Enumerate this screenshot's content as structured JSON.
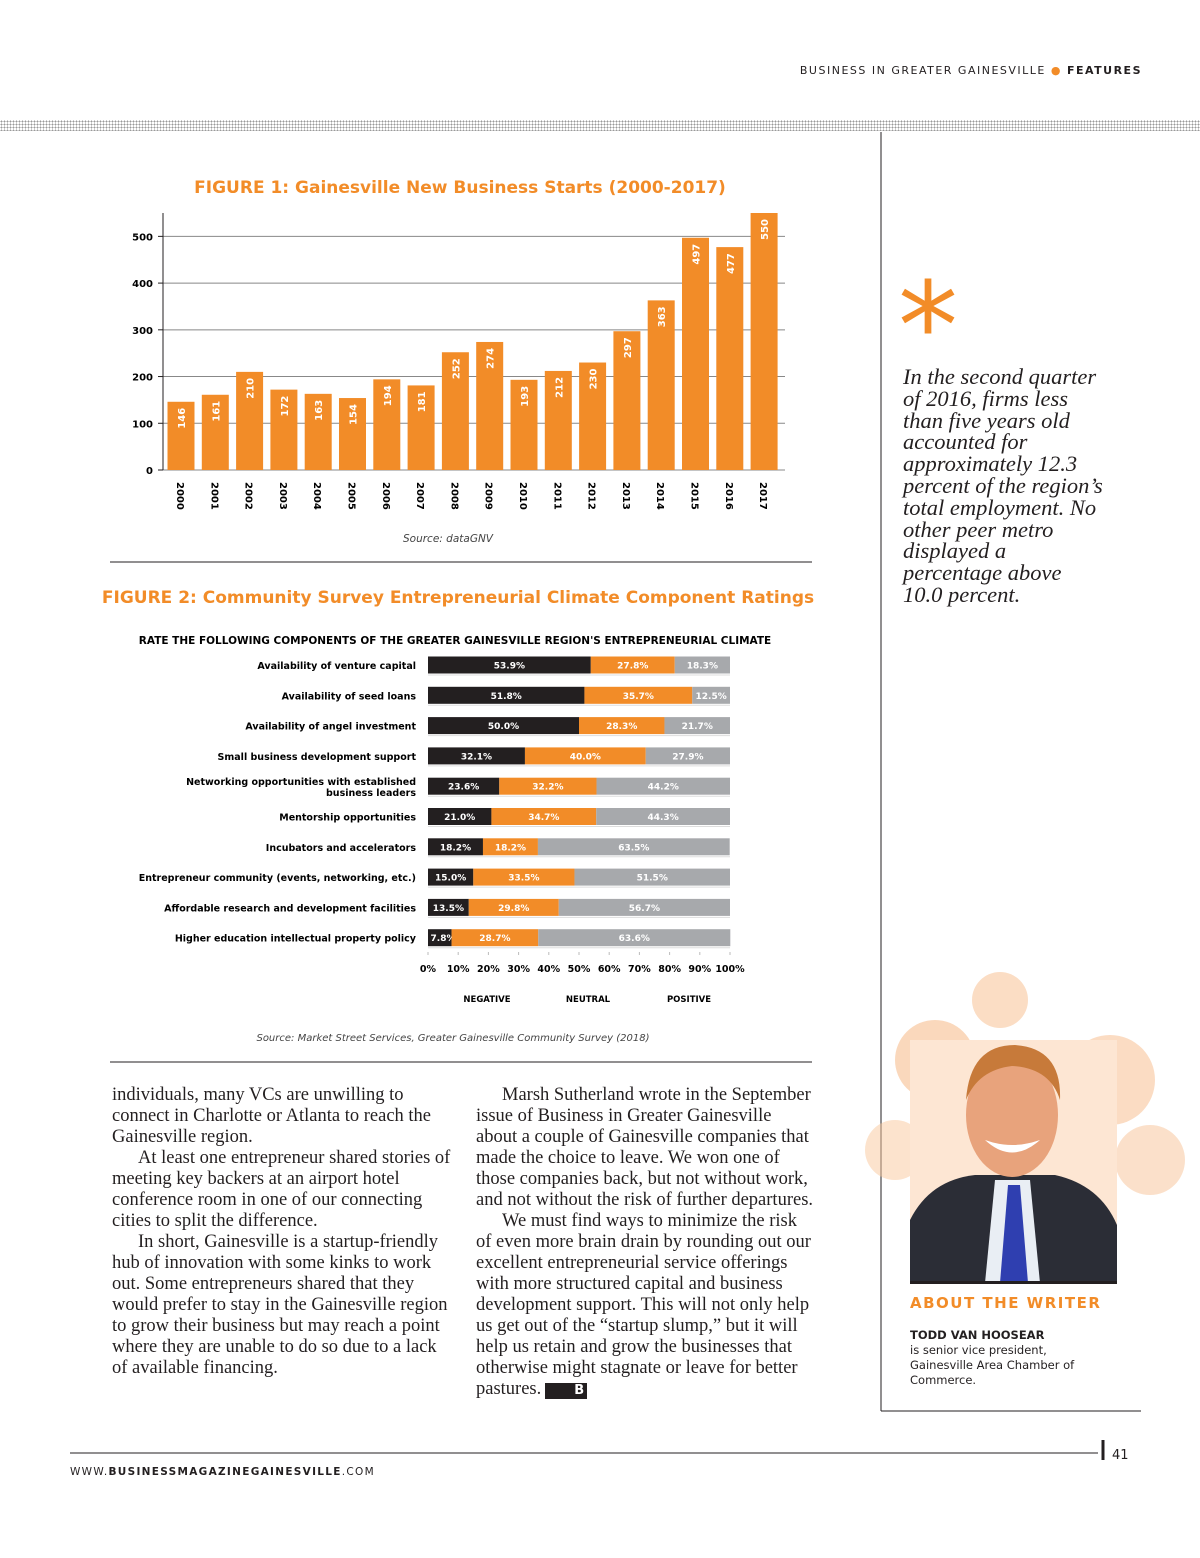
{
  "header": {
    "section": "BUSINESS IN GREATER GAINESVILLE",
    "label": "FEATURES"
  },
  "chart_data": [
    {
      "type": "bar",
      "title": "FIGURE 1: Gainesville New Business Starts (2000-2017)",
      "source": "Source: dataGNV",
      "categories": [
        "2000",
        "2001",
        "2002",
        "2003",
        "2004",
        "2005",
        "2006",
        "2007",
        "2008",
        "2009",
        "2010",
        "2011",
        "2012",
        "2013",
        "2014",
        "2015",
        "2016",
        "2017"
      ],
      "values": [
        146,
        161,
        210,
        172,
        163,
        154,
        194,
        181,
        252,
        274,
        193,
        212,
        230,
        297,
        363,
        497,
        477,
        550
      ],
      "color": "#f28c28",
      "ylim": [
        0,
        550
      ],
      "yticks": [
        0,
        100,
        200,
        300,
        400,
        500
      ],
      "grid": true
    },
    {
      "type": "stacked-hbar",
      "title": "FIGURE 2: Community Survey Entrepreneurial Climate Component Ratings",
      "subtitle": "RATE THE FOLLOWING COMPONENTS OF THE GREATER GAINESVILLE REGION'S ENTREPRENEURIAL CLIMATE",
      "source": "Source: Market Street Services, Greater Gainesville Community Survey (2018)",
      "categories": [
        "Availability of venture capital",
        "Availability of seed loans",
        "Availability of angel investment",
        "Small business development support",
        "Networking opportunities with established business leaders",
        "Mentorship opportunities",
        "Incubators and accelerators",
        "Entrepreneur community (events, networking, etc.)",
        "Affordable research and development facilities",
        "Higher education intellectual property policy"
      ],
      "series": [
        {
          "name": "NEGATIVE",
          "color": "#231f20",
          "values": [
            53.9,
            51.8,
            50.0,
            32.1,
            23.6,
            21.0,
            18.2,
            15.0,
            13.5,
            7.8
          ],
          "value_labels": [
            "53.9%",
            "51.8%",
            "50.0%",
            "32.1%",
            "23.6%",
            "21.0%",
            "18.2%",
            "15.0%",
            "13.5%",
            "7.8%"
          ]
        },
        {
          "name": "NEUTRAL",
          "color": "#f28c28",
          "values": [
            27.8,
            35.7,
            28.3,
            40.0,
            32.2,
            34.7,
            18.2,
            33.5,
            29.8,
            28.7
          ],
          "value_labels": [
            "27.8%",
            "35.7%",
            "28.3%",
            "40.0%",
            "32.2%",
            "34.7%",
            "18.2%",
            "33.5%",
            "29.8%",
            "28.7%"
          ]
        },
        {
          "name": "POSITIVE",
          "color": "#a7a9ac",
          "values": [
            18.3,
            12.5,
            21.7,
            27.9,
            44.2,
            44.3,
            63.5,
            51.5,
            56.7,
            63.6
          ],
          "value_labels": [
            "18.3%",
            "12.5%",
            "21.7%",
            "27.9%",
            "44.2%",
            "44.3%",
            "63.5%",
            "51.5%",
            "56.7%",
            "63.6%"
          ]
        }
      ],
      "xlim": [
        0,
        100
      ],
      "xticks": [
        {
          "value": 0,
          "label": "0%"
        },
        {
          "value": 10,
          "label": "10%"
        },
        {
          "value": 20,
          "label": "20%"
        },
        {
          "value": 30,
          "label": "30%"
        },
        {
          "value": 40,
          "label": "40%"
        },
        {
          "value": 50,
          "label": "50%"
        },
        {
          "value": 60,
          "label": "60%"
        },
        {
          "value": 70,
          "label": "70%"
        },
        {
          "value": 80,
          "label": "80%"
        },
        {
          "value": 90,
          "label": "90%"
        },
        {
          "value": 100,
          "label": "100%"
        }
      ]
    }
  ],
  "body": {
    "column1": [
      "individuals, many VCs are unwilling to connect in Charlotte or Atlanta to reach the Gainesville region.",
      "At least one entrepreneur shared stories of meeting key backers at an airport hotel conference room in one of our connecting cities to split the difference.",
      "In short, Gainesville is a startup-friendly hub of innovation with some kinks to work out. Some entrepreneurs shared that they would prefer to stay in the Gainesville region to grow their business but may reach a point where they are unable to do so due to a lack of available financing."
    ],
    "column2": [
      "Marsh Sutherland wrote in the September issue of Business in Greater Gainesville about a couple of Gainesville companies that made the choice to leave. We won one of those companies back, but not without work, and not without the risk of further departures.",
      "We must find ways to minimize the risk of even more brain drain by rounding out our excellent entrepreneurial service offerings with more structured capital and business development support. This will not only help us get out of the “startup slump,” but it will help us retain and grow the businesses that otherwise might stagnate or leave for better pastures."
    ],
    "end_mark": "B"
  },
  "sidebar": {
    "mark": "*",
    "quote": "In the second quarter of 2016, firms less than five years old accounted for approximately 12.3 percent of the region’s total employment. No other peer metro displayed a percentage above 10.0 percent.",
    "about_heading": "ABOUT THE WRITER",
    "writer_name": "TODD VAN HOOSEAR",
    "writer_bio": "is senior vice president, Gainesville Area Chamber of Commerce."
  },
  "footer": {
    "url_prefix": "WWW.",
    "url_main": "BUSINESSMAGAZINEGAINESVILLE",
    "url_suffix": ".COM",
    "page_number": "41"
  }
}
